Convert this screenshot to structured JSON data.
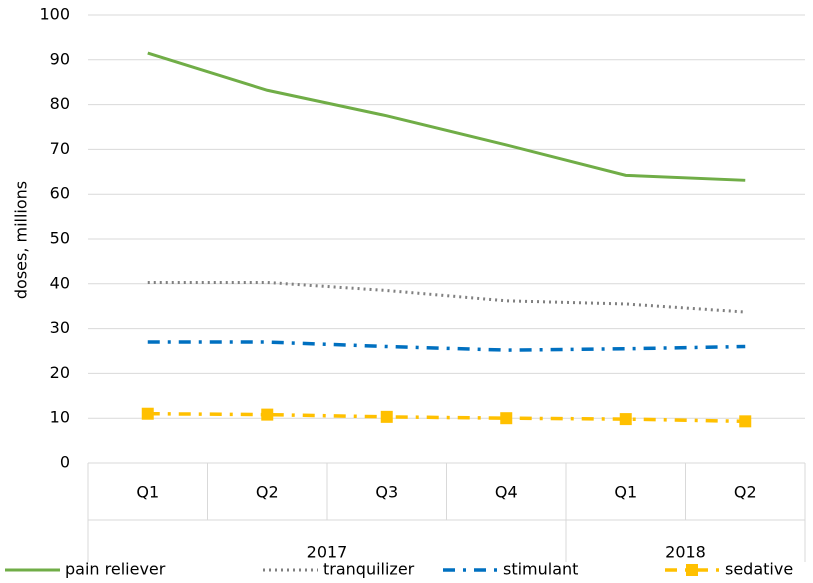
{
  "chart_data": {
    "type": "line",
    "y_label": "doses, millions",
    "categories": [
      "Q1",
      "Q2",
      "Q3",
      "Q4",
      "Q1",
      "Q2"
    ],
    "category_groups": [
      {
        "label": "2017",
        "count": 4
      },
      {
        "label": "2018",
        "count": 2
      }
    ],
    "series": [
      {
        "name": "pain reliever",
        "color": "#70ad47",
        "style": "solid",
        "values": [
          91.5,
          83.2,
          77.5,
          71.0,
          64.2,
          63.1
        ]
      },
      {
        "name": "tranquilizer",
        "color": "#808080",
        "style": "dotted",
        "values": [
          40.3,
          40.3,
          38.5,
          36.2,
          35.5,
          33.7
        ]
      },
      {
        "name": "stimulant",
        "color": "#0070c0",
        "style": "dash-dot",
        "values": [
          27.0,
          27.0,
          26.0,
          25.2,
          25.5,
          26.0
        ]
      },
      {
        "name": "sedative",
        "color": "#ffc000",
        "style": "dash-dot",
        "marker": "square",
        "values": [
          11.0,
          10.8,
          10.3,
          10.0,
          9.8,
          9.3
        ]
      }
    ],
    "ylim": [
      0,
      100
    ],
    "yticks": [
      0,
      10,
      20,
      30,
      40,
      50,
      60,
      70,
      80,
      90,
      100
    ],
    "grid": true,
    "legend": "bottom"
  }
}
